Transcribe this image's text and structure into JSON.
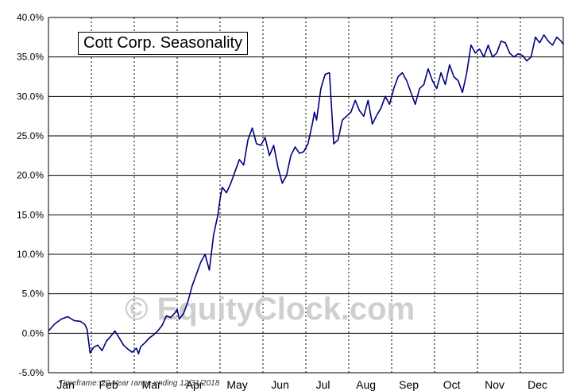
{
  "chart_data": {
    "type": "line",
    "title": "Cott Corp. Seasonality",
    "ylim": [
      -5,
      40
    ],
    "yticks": [
      -5,
      0,
      5,
      10,
      15,
      20,
      25,
      30,
      35,
      40
    ],
    "ytick_labels": [
      "-5.0%",
      "0.0%",
      "5.0%",
      "10.0%",
      "15.0%",
      "20.0%",
      "25.0%",
      "30.0%",
      "35.0%",
      "40.0%"
    ],
    "categories": [
      "Jan",
      "Feb",
      "Mar",
      "Apr",
      "May",
      "Jun",
      "Jul",
      "Aug",
      "Sep",
      "Oct",
      "Nov",
      "Dec"
    ],
    "grid": true,
    "series_color": "#000080",
    "series": [
      {
        "x": [
          0,
          0.15,
          0.3,
          0.45,
          0.6,
          0.75,
          0.85,
          0.9,
          0.97,
          1.05,
          1.15,
          1.25,
          1.35,
          1.45,
          1.55,
          1.65,
          1.75,
          1.85,
          1.95,
          2.05,
          2.1,
          2.15,
          2.25,
          2.35,
          2.45,
          2.55,
          2.65,
          2.75,
          2.85,
          2.95,
          3.0,
          3.05,
          3.15,
          3.25,
          3.35,
          3.45,
          3.55,
          3.65,
          3.75,
          3.85,
          3.95,
          4.0,
          4.05,
          4.15,
          4.25,
          4.35,
          4.45,
          4.55,
          4.65,
          4.75,
          4.85,
          4.95,
          5.05,
          5.15,
          5.25,
          5.35,
          5.45,
          5.55,
          5.65,
          5.75,
          5.85,
          5.95,
          6.05,
          6.15,
          6.2,
          6.25,
          6.35,
          6.45,
          6.55,
          6.65,
          6.75,
          6.85,
          6.95,
          7.05,
          7.15,
          7.25,
          7.35,
          7.45,
          7.55,
          7.65,
          7.75,
          7.85,
          7.95,
          8.05,
          8.15,
          8.25,
          8.35,
          8.45,
          8.55,
          8.65,
          8.75,
          8.85,
          8.95,
          9.05,
          9.15,
          9.25,
          9.35,
          9.45,
          9.55,
          9.65,
          9.75,
          9.85,
          9.95,
          10.05,
          10.15,
          10.25,
          10.35,
          10.45,
          10.55,
          10.65,
          10.75,
          10.85,
          10.95,
          11.05,
          11.15,
          11.25,
          11.35,
          11.45,
          11.55,
          11.65,
          11.75,
          11.85,
          11.95,
          12.0
        ],
        "y": [
          0.3,
          1.2,
          1.8,
          2.1,
          1.6,
          1.5,
          1.1,
          0.5,
          -2.5,
          -1.8,
          -1.5,
          -2.2,
          -1.0,
          -0.4,
          0.3,
          -0.6,
          -1.5,
          -2.0,
          -2.4,
          -1.9,
          -2.6,
          -1.7,
          -1.2,
          -0.6,
          -0.2,
          0.3,
          1.0,
          2.2,
          2.0,
          2.6,
          3.0,
          1.8,
          2.5,
          4.0,
          6.0,
          7.5,
          9.0,
          10.0,
          8.0,
          12.5,
          15.0,
          17.0,
          18.5,
          17.8,
          19.0,
          20.5,
          22.0,
          21.3,
          24.5,
          26.0,
          24.0,
          23.8,
          24.8,
          22.5,
          23.8,
          21.0,
          19.0,
          20.0,
          22.5,
          23.6,
          22.8,
          23.0,
          24.0,
          26.5,
          28.0,
          27.0,
          31.0,
          32.8,
          33.0,
          24.0,
          24.5,
          27.0,
          27.5,
          28.0,
          29.5,
          28.2,
          27.5,
          29.5,
          26.5,
          27.6,
          28.5,
          30.0,
          29.0,
          31.0,
          32.5,
          33.0,
          32.0,
          30.5,
          29.0,
          31.0,
          31.5,
          33.5,
          32.0,
          31.0,
          33.0,
          31.5,
          34.0,
          32.5,
          32.0,
          30.5,
          33.0,
          36.5,
          35.5,
          36.0,
          35.0,
          36.5,
          35.0,
          35.5,
          37.0,
          36.8,
          35.5,
          35.0,
          35.4,
          35.2,
          34.5,
          35.0,
          37.5,
          36.8,
          37.8,
          37.0,
          36.5,
          37.5,
          37.0,
          36.6
        ]
      }
    ],
    "watermark": "© EquityClock.com",
    "footnote": "Timeframe: 20-Year range ending 12/31/2018"
  }
}
